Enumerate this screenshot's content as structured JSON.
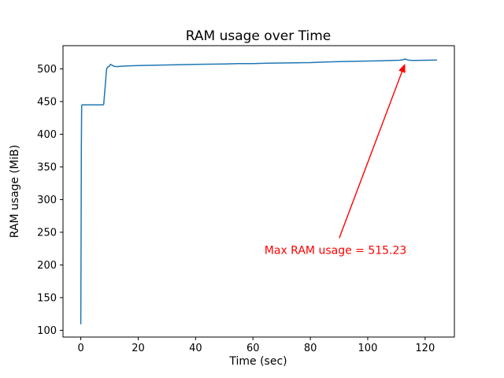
{
  "figure": {
    "background": "#ffffff"
  },
  "chart_data": {
    "type": "line",
    "title": "RAM usage over Time",
    "xlabel": "Time (sec)",
    "ylabel": "RAM usage (MiB)",
    "xlim": [
      -6.2,
      130.2
    ],
    "ylim": [
      89.7,
      535.5
    ],
    "xticks": [
      0,
      20,
      40,
      60,
      80,
      100,
      120
    ],
    "yticks": [
      100,
      150,
      200,
      250,
      300,
      350,
      400,
      450,
      500
    ],
    "grid": false,
    "legend": "none",
    "series": [
      {
        "name": "RAM usage",
        "color": "#1f77b4",
        "points": [
          [
            0,
            110
          ],
          [
            0.1,
            250
          ],
          [
            0.2,
            380
          ],
          [
            0.3,
            444
          ],
          [
            0.5,
            445
          ],
          [
            2,
            445
          ],
          [
            4,
            445
          ],
          [
            6,
            445
          ],
          [
            7.8,
            445
          ],
          [
            8,
            446
          ],
          [
            8.6,
            478
          ],
          [
            9,
            500
          ],
          [
            9.4,
            503
          ],
          [
            10,
            504
          ],
          [
            10.3,
            507
          ],
          [
            10.8,
            506
          ],
          [
            11.5,
            504
          ],
          [
            12.5,
            503.5
          ],
          [
            14,
            504
          ],
          [
            16,
            504.5
          ],
          [
            20,
            505
          ],
          [
            25,
            505.5
          ],
          [
            30,
            506
          ],
          [
            35,
            506.5
          ],
          [
            40,
            507
          ],
          [
            45,
            507.2
          ],
          [
            50,
            507.5
          ],
          [
            55,
            508
          ],
          [
            60,
            508.2
          ],
          [
            65,
            508.6
          ],
          [
            70,
            509
          ],
          [
            75,
            509.3
          ],
          [
            80,
            509.6
          ],
          [
            85,
            510.5
          ],
          [
            90,
            511
          ],
          [
            95,
            511.5
          ],
          [
            100,
            512
          ],
          [
            104,
            512.4
          ],
          [
            108,
            512.8
          ],
          [
            111,
            513.2
          ],
          [
            112.5,
            514
          ],
          [
            113,
            515.23
          ],
          [
            113.6,
            514
          ],
          [
            114.5,
            513.2
          ],
          [
            116,
            513
          ],
          [
            118,
            513.1
          ],
          [
            120,
            513.2
          ],
          [
            122,
            513.3
          ],
          [
            124,
            513.4
          ]
        ]
      }
    ],
    "annotation": {
      "text": "Max RAM usage = 515.23",
      "color": "#ff0000",
      "xy": [
        113,
        515.23
      ],
      "xytext": [
        64,
        217
      ]
    }
  }
}
